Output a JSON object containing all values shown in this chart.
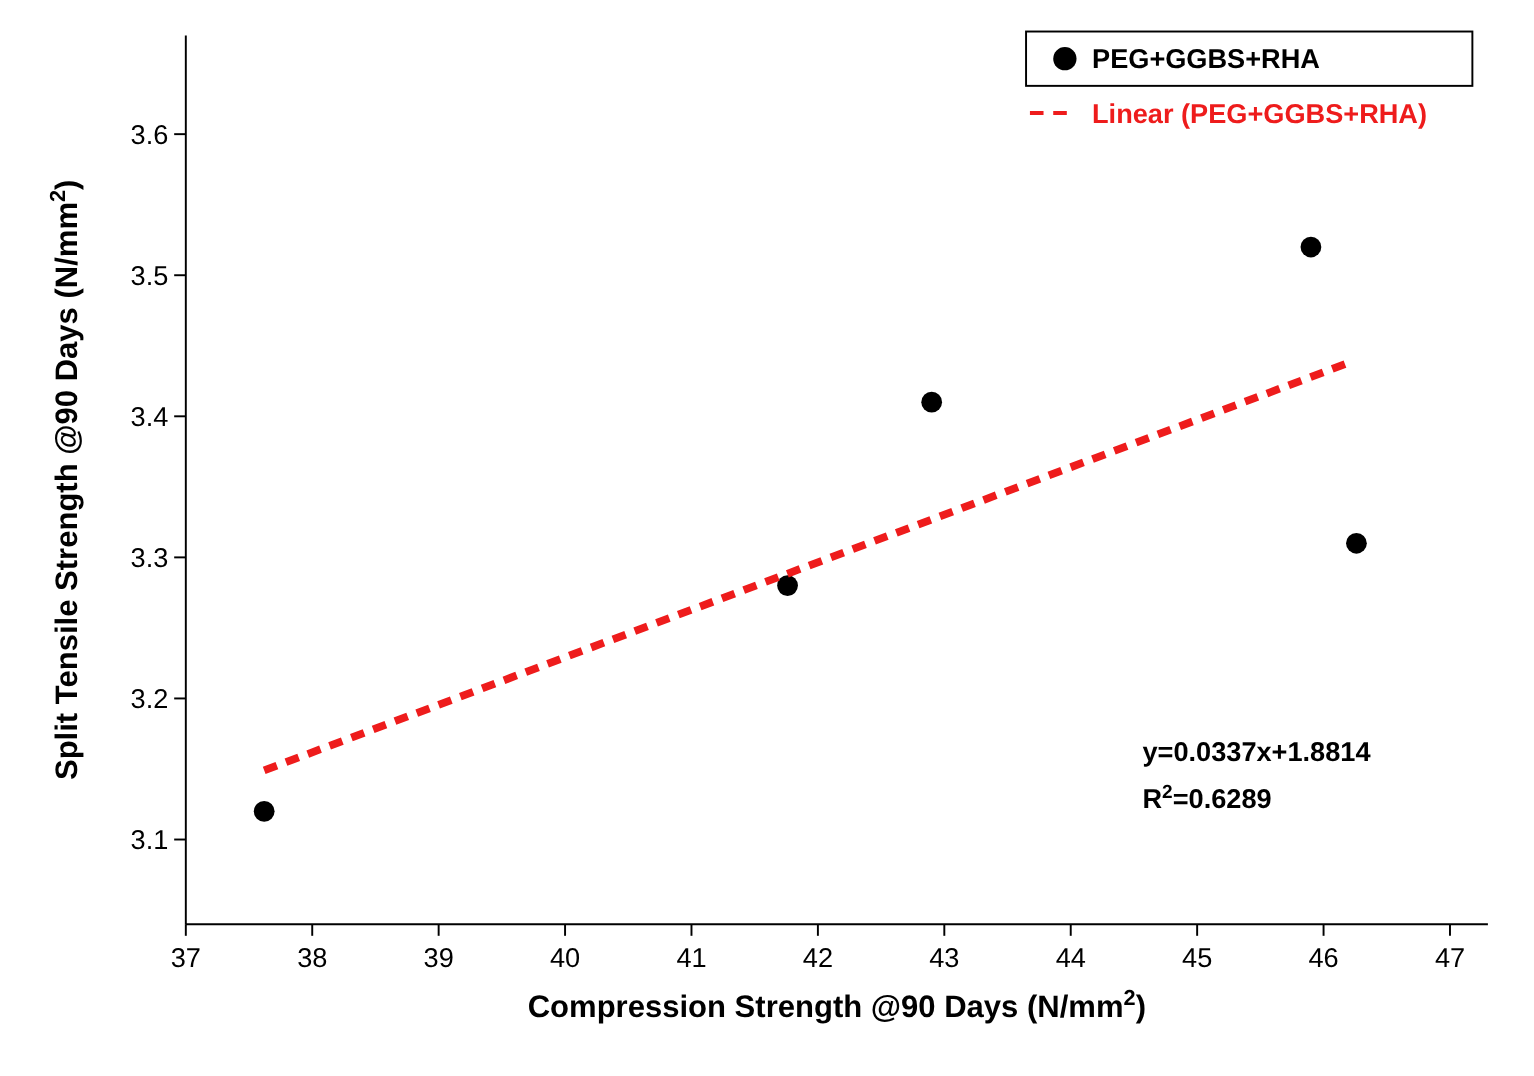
{
  "chart_data": {
    "type": "scatter",
    "xlabel": "Compression Strength @90 Days (N/mm$^{2}$)",
    "ylabel": "Split Tensile Strength @90 Days (N/mm$^{2}$)",
    "xlim": [
      37,
      47.3
    ],
    "xticks": [
      37,
      38,
      39,
      40,
      41,
      42,
      43,
      44,
      45,
      46,
      47
    ],
    "ylim": [
      3.04,
      3.67
    ],
    "yticks": [
      3.1,
      3.2,
      3.3,
      3.4,
      3.5,
      3.6
    ],
    "series": [
      {
        "name": "PEG+GGBS+RHA",
        "color": "#000000",
        "x": [
          37.62,
          41.76,
          42.9,
          45.9,
          46.26
        ],
        "values": [
          3.12,
          3.28,
          3.41,
          3.52,
          3.31
        ],
        "marker": "circle"
      },
      {
        "name": "Linear (PEG+GGBS+RHA)",
        "type": "line",
        "color": "#ee1c1c",
        "x": [
          37.62,
          46.2
        ],
        "values": [
          3.149,
          3.438
        ],
        "line_style": "dashed",
        "marker": "none"
      }
    ],
    "annotations": [
      "y=0.0337x+1.8814",
      "R$^{2}$=0.6289"
    ],
    "legend": "top right",
    "grid": false
  }
}
